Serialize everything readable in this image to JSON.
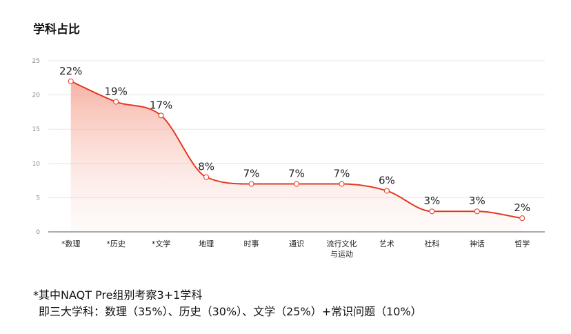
{
  "title": "学科占比",
  "chart_data": {
    "type": "area",
    "categories": [
      "*数理",
      "*历史",
      "*文学",
      "地理",
      "时事",
      "通识",
      "流行文化\n与运动",
      "艺术",
      "社科",
      "神话",
      "哲学"
    ],
    "values": [
      22,
      19,
      17,
      8,
      7,
      7,
      7,
      6,
      3,
      3,
      2
    ],
    "data_labels": [
      "22%",
      "19%",
      "17%",
      "8%",
      "7%",
      "7%",
      "7%",
      "6%",
      "3%",
      "3%",
      "2%"
    ],
    "ylim": [
      0,
      25
    ],
    "yticks": [
      0,
      5,
      10,
      15,
      20,
      25
    ],
    "grid": true,
    "smooth": true,
    "line_color": "#e4381f",
    "fill_color": "#f7b3a6",
    "point_fill": "#ffffff"
  },
  "note": {
    "line1": "*其中NAQT Pre组别考察3+1学科",
    "line2": "即三大学科：数理（35%）、历史（30%）、文学（25%）+常识问题（10%）"
  }
}
